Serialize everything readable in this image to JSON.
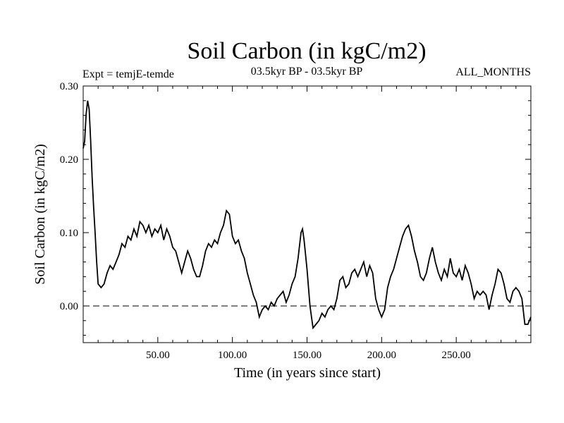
{
  "chart_data": {
    "type": "line",
    "title": "Soil Carbon (in kgC/m2)",
    "subtitle_left": "Expt = temjE-temde",
    "subtitle_center": "03.5kyr BP - 03.5kyr BP",
    "subtitle_right": "ALL_MONTHS",
    "xlabel": "Time (in years since start)",
    "ylabel": "Soil Carbon (in kgC/m2)",
    "xlim": [
      0,
      300
    ],
    "ylim": [
      -0.05,
      0.3
    ],
    "xticks": [
      50,
      100,
      150,
      200,
      250
    ],
    "xtick_labels": [
      "50.00",
      "100.00",
      "150.00",
      "200.00",
      "250.00"
    ],
    "yticks": [
      0.0,
      0.1,
      0.2,
      0.3
    ],
    "ytick_labels": [
      "0.00",
      "0.10",
      "0.20",
      "0.30"
    ],
    "zero_line": "dashed",
    "grid": false,
    "series": [
      {
        "color": "#000000",
        "points": [
          [
            0,
            0.215
          ],
          [
            1,
            0.225
          ],
          [
            2,
            0.262
          ],
          [
            3,
            0.28
          ],
          [
            4,
            0.268
          ],
          [
            5,
            0.225
          ],
          [
            6,
            0.175
          ],
          [
            7,
            0.135
          ],
          [
            8,
            0.1
          ],
          [
            9,
            0.06
          ],
          [
            10,
            0.03
          ],
          [
            12,
            0.025
          ],
          [
            14,
            0.03
          ],
          [
            16,
            0.045
          ],
          [
            18,
            0.055
          ],
          [
            20,
            0.05
          ],
          [
            22,
            0.06
          ],
          [
            24,
            0.07
          ],
          [
            26,
            0.085
          ],
          [
            28,
            0.08
          ],
          [
            30,
            0.095
          ],
          [
            32,
            0.09
          ],
          [
            34,
            0.105
          ],
          [
            36,
            0.095
          ],
          [
            38,
            0.115
          ],
          [
            40,
            0.11
          ],
          [
            42,
            0.1
          ],
          [
            44,
            0.11
          ],
          [
            46,
            0.095
          ],
          [
            48,
            0.105
          ],
          [
            50,
            0.1
          ],
          [
            52,
            0.11
          ],
          [
            54,
            0.09
          ],
          [
            56,
            0.105
          ],
          [
            58,
            0.095
          ],
          [
            60,
            0.08
          ],
          [
            62,
            0.075
          ],
          [
            64,
            0.06
          ],
          [
            66,
            0.045
          ],
          [
            68,
            0.06
          ],
          [
            70,
            0.075
          ],
          [
            72,
            0.065
          ],
          [
            74,
            0.05
          ],
          [
            76,
            0.04
          ],
          [
            78,
            0.04
          ],
          [
            80,
            0.055
          ],
          [
            82,
            0.075
          ],
          [
            84,
            0.085
          ],
          [
            86,
            0.08
          ],
          [
            88,
            0.09
          ],
          [
            90,
            0.085
          ],
          [
            92,
            0.1
          ],
          [
            94,
            0.11
          ],
          [
            96,
            0.13
          ],
          [
            98,
            0.125
          ],
          [
            100,
            0.095
          ],
          [
            102,
            0.085
          ],
          [
            104,
            0.09
          ],
          [
            106,
            0.075
          ],
          [
            108,
            0.065
          ],
          [
            110,
            0.045
          ],
          [
            112,
            0.03
          ],
          [
            114,
            0.015
          ],
          [
            116,
            0.005
          ],
          [
            118,
            -0.015
          ],
          [
            120,
            -0.005
          ],
          [
            122,
            0.0
          ],
          [
            124,
            -0.005
          ],
          [
            126,
            0.005
          ],
          [
            128,
            0.0
          ],
          [
            130,
            0.01
          ],
          [
            132,
            0.015
          ],
          [
            134,
            0.02
          ],
          [
            136,
            0.005
          ],
          [
            138,
            0.015
          ],
          [
            140,
            0.03
          ],
          [
            142,
            0.04
          ],
          [
            144,
            0.065
          ],
          [
            146,
            0.1
          ],
          [
            147,
            0.105
          ],
          [
            148,
            0.09
          ],
          [
            150,
            0.05
          ],
          [
            152,
            0.0
          ],
          [
            154,
            -0.03
          ],
          [
            156,
            -0.025
          ],
          [
            158,
            -0.02
          ],
          [
            160,
            -0.01
          ],
          [
            162,
            -0.015
          ],
          [
            164,
            -0.005
          ],
          [
            166,
            0.0
          ],
          [
            168,
            -0.005
          ],
          [
            170,
            0.01
          ],
          [
            172,
            0.035
          ],
          [
            174,
            0.04
          ],
          [
            176,
            0.025
          ],
          [
            178,
            0.03
          ],
          [
            180,
            0.045
          ],
          [
            182,
            0.05
          ],
          [
            184,
            0.04
          ],
          [
            186,
            0.05
          ],
          [
            188,
            0.06
          ],
          [
            190,
            0.04
          ],
          [
            192,
            0.055
          ],
          [
            194,
            0.045
          ],
          [
            196,
            0.01
          ],
          [
            198,
            -0.005
          ],
          [
            200,
            -0.015
          ],
          [
            202,
            -0.005
          ],
          [
            204,
            0.025
          ],
          [
            206,
            0.04
          ],
          [
            208,
            0.05
          ],
          [
            210,
            0.065
          ],
          [
            212,
            0.08
          ],
          [
            214,
            0.095
          ],
          [
            216,
            0.105
          ],
          [
            218,
            0.11
          ],
          [
            220,
            0.095
          ],
          [
            222,
            0.075
          ],
          [
            224,
            0.06
          ],
          [
            226,
            0.04
          ],
          [
            228,
            0.035
          ],
          [
            230,
            0.045
          ],
          [
            232,
            0.065
          ],
          [
            234,
            0.08
          ],
          [
            236,
            0.06
          ],
          [
            238,
            0.045
          ],
          [
            240,
            0.035
          ],
          [
            242,
            0.05
          ],
          [
            244,
            0.04
          ],
          [
            246,
            0.065
          ],
          [
            248,
            0.045
          ],
          [
            250,
            0.04
          ],
          [
            252,
            0.05
          ],
          [
            254,
            0.035
          ],
          [
            256,
            0.055
          ],
          [
            258,
            0.045
          ],
          [
            260,
            0.03
          ],
          [
            262,
            0.01
          ],
          [
            264,
            0.02
          ],
          [
            266,
            0.015
          ],
          [
            268,
            0.02
          ],
          [
            270,
            0.015
          ],
          [
            272,
            -0.005
          ],
          [
            274,
            0.015
          ],
          [
            276,
            0.03
          ],
          [
            278,
            0.05
          ],
          [
            280,
            0.045
          ],
          [
            282,
            0.03
          ],
          [
            284,
            0.01
          ],
          [
            286,
            0.005
          ],
          [
            288,
            0.02
          ],
          [
            290,
            0.025
          ],
          [
            292,
            0.02
          ],
          [
            294,
            0.01
          ],
          [
            296,
            -0.025
          ],
          [
            298,
            -0.025
          ],
          [
            300,
            -0.015
          ]
        ]
      }
    ]
  }
}
